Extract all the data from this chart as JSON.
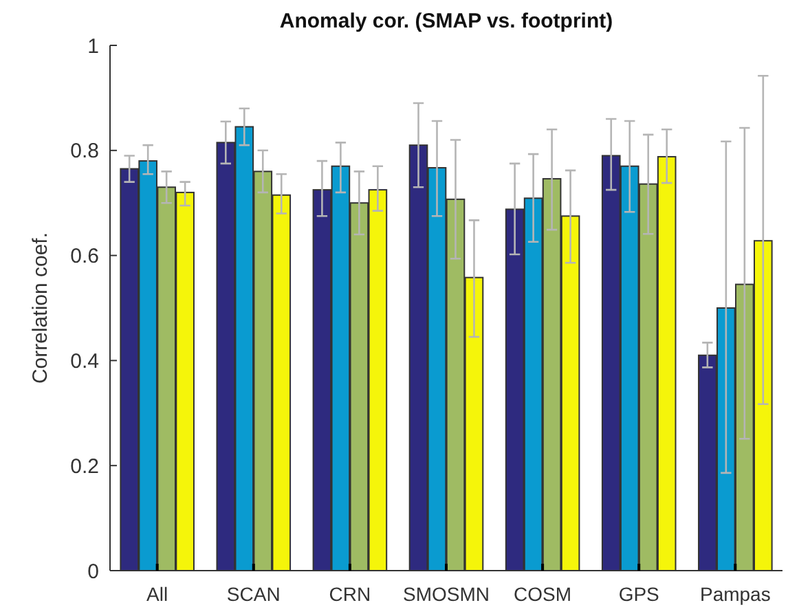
{
  "chart_data": {
    "type": "bar",
    "title": "Anomaly cor. (SMAP vs. footprint)",
    "ylabel": "Correlation coef.",
    "categories": [
      "All",
      "SCAN",
      "CRN",
      "SMOSMN",
      "COSM",
      "GPS",
      "Pampas"
    ],
    "ylim": [
      0,
      1
    ],
    "yticks": [
      0,
      0.2,
      0.4,
      0.6,
      0.8,
      1
    ],
    "grid": false,
    "series": [
      {
        "color": "#2e2a7f",
        "values": [
          0.765,
          0.815,
          0.725,
          0.81,
          0.688,
          0.79,
          0.41
        ],
        "errors": [
          [
            0.74,
            0.79
          ],
          [
            0.775,
            0.855
          ],
          [
            0.675,
            0.78
          ],
          [
            0.73,
            0.89
          ],
          [
            0.602,
            0.775
          ],
          [
            0.725,
            0.86
          ],
          [
            0.387,
            0.434
          ]
        ]
      },
      {
        "color": "#0a9bd0",
        "values": [
          0.78,
          0.845,
          0.77,
          0.767,
          0.709,
          0.77,
          0.5
        ],
        "errors": [
          [
            0.755,
            0.81
          ],
          [
            0.81,
            0.88
          ],
          [
            0.72,
            0.815
          ],
          [
            0.675,
            0.856
          ],
          [
            0.626,
            0.793
          ],
          [
            0.683,
            0.856
          ],
          [
            0.186,
            0.817
          ]
        ]
      },
      {
        "color": "#9fbb63",
        "values": [
          0.73,
          0.76,
          0.7,
          0.707,
          0.746,
          0.736,
          0.545
        ],
        "errors": [
          [
            0.7,
            0.76
          ],
          [
            0.72,
            0.8
          ],
          [
            0.64,
            0.76
          ],
          [
            0.594,
            0.82
          ],
          [
            0.649,
            0.84
          ],
          [
            0.641,
            0.83
          ],
          [
            0.251,
            0.843
          ]
        ]
      },
      {
        "color": "#f5f50a",
        "values": [
          0.72,
          0.715,
          0.725,
          0.558,
          0.675,
          0.788,
          0.628
        ],
        "errors": [
          [
            0.695,
            0.74
          ],
          [
            0.68,
            0.755
          ],
          [
            0.685,
            0.77
          ],
          [
            0.445,
            0.667
          ],
          [
            0.586,
            0.762
          ],
          [
            0.738,
            0.84
          ],
          [
            0.317,
            0.942
          ]
        ]
      }
    ]
  }
}
